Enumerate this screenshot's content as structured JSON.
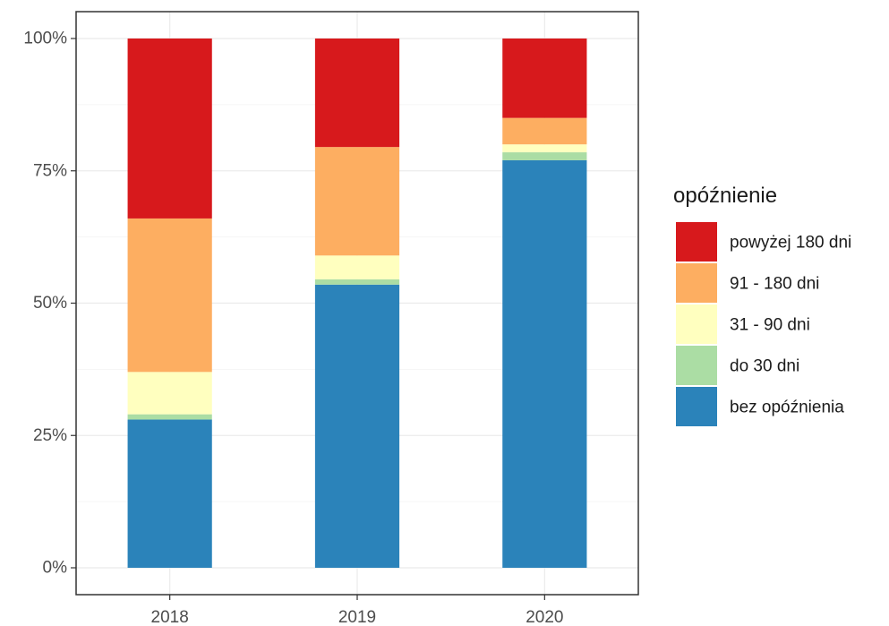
{
  "chart_data": {
    "type": "bar",
    "stacked": true,
    "percent": true,
    "categories": [
      "2018",
      "2019",
      "2020"
    ],
    "series": [
      {
        "name": "bez opóźnienia",
        "color": "#2b83ba",
        "values": [
          28,
          53.5,
          77
        ]
      },
      {
        "name": "do 30 dni",
        "color": "#abdda4",
        "values": [
          1,
          1,
          1.5
        ]
      },
      {
        "name": "31 - 90 dni",
        "color": "#ffffbf",
        "values": [
          8,
          4.5,
          1.5
        ]
      },
      {
        "name": "91 - 180 dni",
        "color": "#fdae61",
        "values": [
          29,
          20.5,
          5
        ]
      },
      {
        "name": "powyżej 180 dni",
        "color": "#d7191c",
        "values": [
          34,
          20.5,
          15
        ]
      }
    ],
    "title": "",
    "xlabel": "",
    "ylabel": "",
    "ylim": [
      0,
      100
    ],
    "yticks": [
      0,
      25,
      50,
      75,
      100
    ],
    "ytick_labels": [
      "0%",
      "25%",
      "50%",
      "75%",
      "100%"
    ],
    "grid": true,
    "legend": {
      "title": "opóźnienie",
      "placement": "right",
      "order": [
        "powyżej 180 dni",
        "91 - 180 dni",
        "31 - 90 dni",
        "do 30 dni",
        "bez opóźnienia"
      ]
    }
  }
}
